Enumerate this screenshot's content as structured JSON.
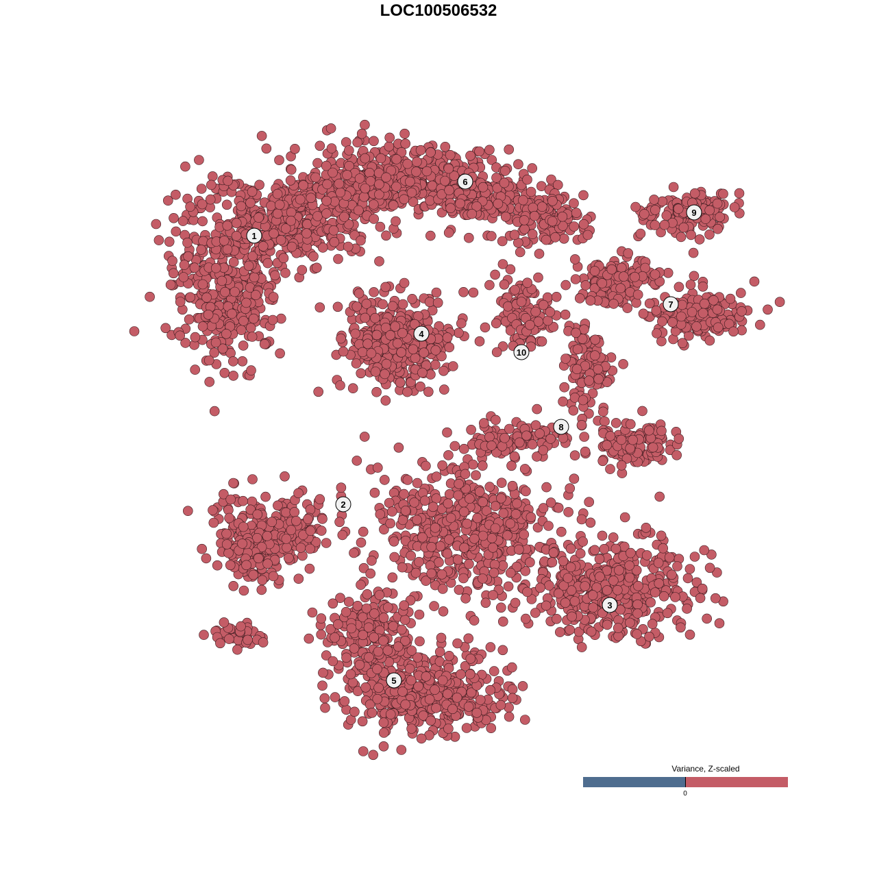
{
  "chart_data": {
    "type": "scatter",
    "title": "LOC100506532",
    "xlabel": "",
    "ylabel": "",
    "grid": false,
    "point_color": "#c45c66",
    "point_edge_color": "#3a1a1e",
    "cluster_labels": [
      "1",
      "2",
      "3",
      "4",
      "5",
      "6",
      "7",
      "8",
      "9",
      "10"
    ],
    "legend": {
      "title": "Variance, Z-scaled",
      "placement": "bottom-right",
      "tick_label": "0",
      "negative_color": "#4f6d8f",
      "positive_color": "#c45c66"
    }
  }
}
